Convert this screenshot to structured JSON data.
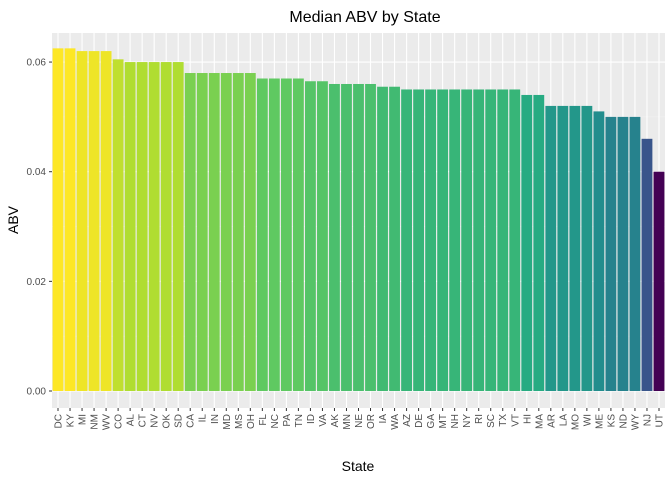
{
  "chart_data": {
    "type": "bar",
    "title": "Median ABV by State",
    "xlabel": "State",
    "ylabel": "ABV",
    "ylim": [
      -0.0031,
      0.0653
    ],
    "yticks": [
      0,
      0.02,
      0.04,
      0.06
    ],
    "ytick_labels": [
      "0.00",
      "0.02",
      "0.04",
      "0.06"
    ],
    "grid": true,
    "legend": "none",
    "colormap": "viridis",
    "categories": [
      "DC",
      "KY",
      "MI",
      "NM",
      "WV",
      "CO",
      "AL",
      "CT",
      "NV",
      "OK",
      "SD",
      "CA",
      "IL",
      "IN",
      "MD",
      "MS",
      "OH",
      "FL",
      "NC",
      "PA",
      "TN",
      "ID",
      "VA",
      "AK",
      "MN",
      "NE",
      "OR",
      "IA",
      "WA",
      "AZ",
      "DE",
      "GA",
      "MT",
      "NH",
      "NY",
      "RI",
      "SC",
      "TX",
      "VT",
      "HI",
      "MA",
      "AR",
      "LA",
      "MO",
      "WI",
      "ME",
      "KS",
      "ND",
      "WY",
      "NJ",
      "UT"
    ],
    "values": [
      0.0625,
      0.0625,
      0.062,
      0.062,
      0.062,
      0.0605,
      0.06,
      0.06,
      0.06,
      0.06,
      0.06,
      0.058,
      0.058,
      0.058,
      0.058,
      0.058,
      0.058,
      0.057,
      0.057,
      0.057,
      0.057,
      0.0565,
      0.0565,
      0.056,
      0.056,
      0.056,
      0.056,
      0.0555,
      0.0555,
      0.055,
      0.055,
      0.055,
      0.055,
      0.055,
      0.055,
      0.055,
      0.055,
      0.055,
      0.055,
      0.054,
      0.054,
      0.052,
      0.052,
      0.052,
      0.052,
      0.051,
      0.05,
      0.05,
      0.05,
      0.046,
      0.04
    ]
  }
}
